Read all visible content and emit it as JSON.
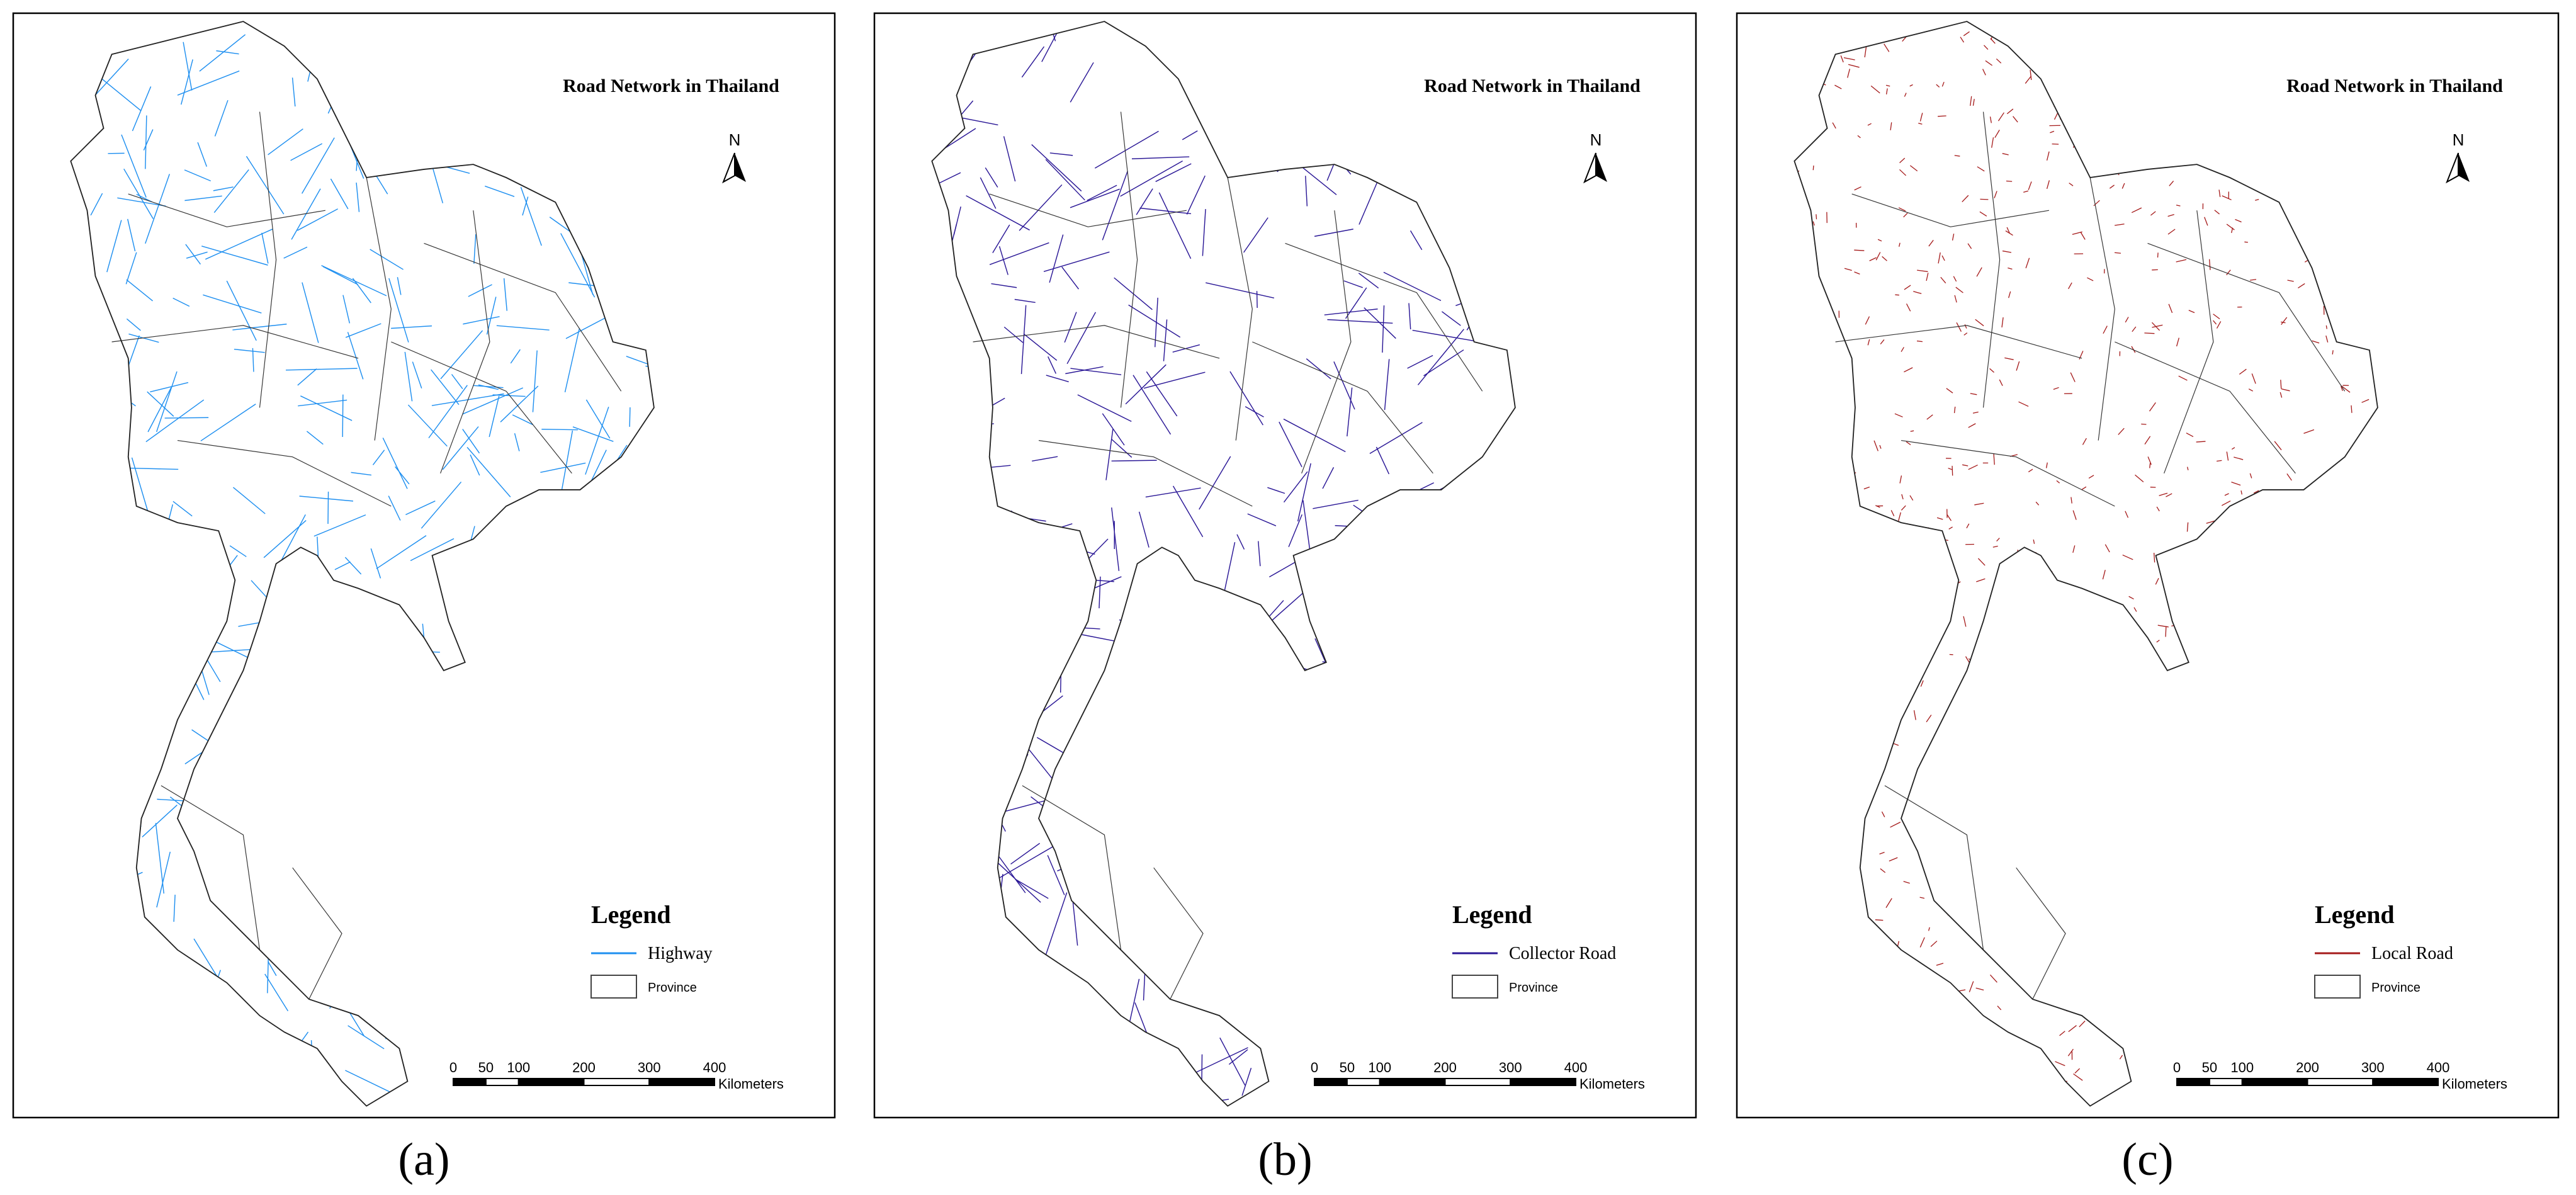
{
  "panels": [
    {
      "title": "Road Network in Thailand",
      "north": "N",
      "legend": {
        "title": "Legend",
        "entries": [
          {
            "label": "Highway",
            "color": "#1e8ff0"
          },
          {
            "label": "Province"
          }
        ]
      },
      "scale": {
        "ticks": [
          0,
          50,
          100,
          200,
          300,
          400
        ],
        "unit": "Kilometers"
      },
      "caption": "(a)"
    },
    {
      "title": "Road Network in Thailand",
      "north": "N",
      "legend": {
        "title": "Legend",
        "entries": [
          {
            "label": "Collector Road",
            "color": "#2a1796"
          },
          {
            "label": "Province"
          }
        ]
      },
      "scale": {
        "ticks": [
          0,
          50,
          100,
          200,
          300,
          400
        ],
        "unit": "Kilometers"
      },
      "caption": "(b)"
    },
    {
      "title": "Road Network in Thailand",
      "north": "N",
      "legend": {
        "title": "Legend",
        "entries": [
          {
            "label": "Local Road",
            "color": "#a51a1a"
          },
          {
            "label": "Province"
          }
        ]
      },
      "scale": {
        "ticks": [
          0,
          50,
          100,
          200,
          300,
          400
        ],
        "unit": "Kilometers"
      },
      "caption": "(c)"
    }
  ]
}
